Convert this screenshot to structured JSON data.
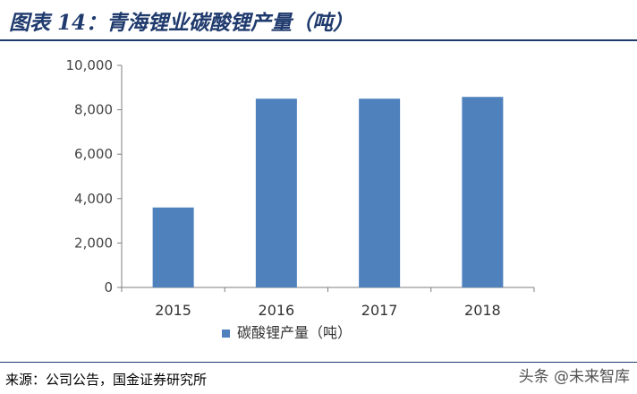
{
  "header": {
    "title": "图表 14：青海锂业碳酸锂产量（吨）"
  },
  "footer": {
    "source": "来源：公司公告，国金证券研究所",
    "watermark": "头条 @未来智库"
  },
  "colors": {
    "bar": "#4f81bd",
    "axis": "#7f7f7f",
    "title": "#1f3a6d"
  },
  "chart_data": {
    "type": "bar",
    "categories": [
      "2015",
      "2016",
      "2017",
      "2018"
    ],
    "series": [
      {
        "name": "碳酸锂产量（吨）",
        "values": [
          3600,
          8500,
          8500,
          8580
        ]
      }
    ],
    "ylim": [
      0,
      10000
    ],
    "yticks": [
      0,
      2000,
      4000,
      6000,
      8000,
      10000
    ],
    "ytick_labels": [
      "0",
      "2,000",
      "4,000",
      "6,000",
      "8,000",
      "10,000"
    ],
    "grid": false,
    "legend": "bottom-center"
  }
}
